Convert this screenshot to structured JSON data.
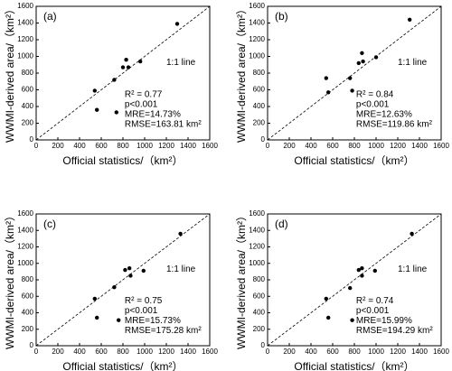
{
  "chart_data": [
    {
      "type": "scatter",
      "panel_label": "(a)",
      "xlabel": "Official  statistics/（km²）",
      "ylabel": "WWMI-derived area/（km²）",
      "x": [
        540,
        560,
        720,
        740,
        800,
        830,
        850,
        960,
        1300
      ],
      "values": [
        590,
        360,
        720,
        330,
        870,
        960,
        870,
        940,
        1390
      ],
      "xlim": [
        0,
        1600
      ],
      "ylim": [
        0,
        1600
      ],
      "xticks": [
        0,
        200,
        400,
        600,
        800,
        1000,
        1200,
        1400,
        1600
      ],
      "yticks": [
        0,
        200,
        400,
        600,
        800,
        1000,
        1200,
        1400,
        1600
      ],
      "line_label": "1:1 line",
      "stats": [
        "R² = 0.77",
        "p<0.001",
        "MRE=14.73%",
        "RMSE=163.81 km²"
      ],
      "color": "#000000"
    },
    {
      "type": "scatter",
      "panel_label": "(b)",
      "xlabel": "Official  statistics/（km²）",
      "ylabel": "WWMI-derived area/（km²）",
      "x": [
        540,
        560,
        760,
        780,
        840,
        870,
        880,
        1000,
        1310
      ],
      "values": [
        740,
        570,
        740,
        590,
        920,
        1040,
        940,
        990,
        1440
      ],
      "xlim": [
        0,
        1600
      ],
      "ylim": [
        0,
        1600
      ],
      "xticks": [
        0,
        200,
        400,
        600,
        800,
        1000,
        1200,
        1400,
        1600
      ],
      "yticks": [
        0,
        200,
        400,
        600,
        800,
        1000,
        1200,
        1400,
        1600
      ],
      "line_label": "1:1 line",
      "stats": [
        "R² = 0.84",
        "p<0.001",
        "MRE=12.63%",
        "RMSE=119.86 km²"
      ],
      "color": "#000000"
    },
    {
      "type": "scatter",
      "panel_label": "(c)",
      "xlabel": "Official  statistics/（km²）",
      "ylabel": "WWMI-derived area/（km²）",
      "x": [
        540,
        560,
        720,
        760,
        820,
        860,
        870,
        990,
        1330
      ],
      "values": [
        570,
        340,
        710,
        310,
        920,
        940,
        850,
        910,
        1360
      ],
      "xlim": [
        0,
        1600
      ],
      "ylim": [
        0,
        1600
      ],
      "xticks": [
        0,
        200,
        400,
        600,
        800,
        1000,
        1200,
        1400,
        1600
      ],
      "yticks": [
        0,
        200,
        400,
        600,
        800,
        1000,
        1200,
        1400,
        1600
      ],
      "line_label": "1:1 line",
      "stats": [
        "R² = 0.75",
        "p<0.001",
        "MRE=15.73%",
        "RMSE=175.28 km²"
      ],
      "color": "#000000"
    },
    {
      "type": "scatter",
      "panel_label": "(d)",
      "xlabel": "Official  statistics/（km²）",
      "ylabel": "WWMI-derived area/（km²）",
      "x": [
        540,
        560,
        760,
        780,
        840,
        870,
        870,
        990,
        1330
      ],
      "values": [
        570,
        340,
        700,
        310,
        920,
        940,
        850,
        910,
        1360
      ],
      "xlim": [
        0,
        1600
      ],
      "ylim": [
        0,
        1600
      ],
      "xticks": [
        0,
        200,
        400,
        600,
        800,
        1000,
        1200,
        1400,
        1600
      ],
      "yticks": [
        0,
        200,
        400,
        600,
        800,
        1000,
        1200,
        1400,
        1600
      ],
      "line_label": "1:1 line",
      "stats": [
        "R² = 0.74",
        "p<0.001",
        "MRE=15.99%",
        "RMSE=194.29 km²"
      ],
      "color": "#000000"
    }
  ]
}
